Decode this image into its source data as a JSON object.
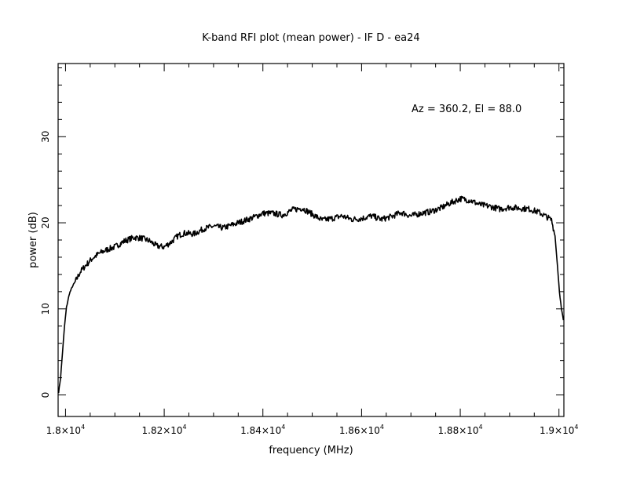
{
  "chart_data": {
    "type": "line",
    "title": "K-band RFI plot (mean power) - IF D - ea24",
    "xlabel": "frequency (MHz)",
    "ylabel": "power (dB)",
    "annotation": "Az = 360.2, El = 88.0",
    "xlim": [
      17985,
      19010
    ],
    "ylim": [
      -2.5,
      38.5
    ],
    "grid": false,
    "line_color": "#000000",
    "x_ticks": [
      {
        "value": 18000,
        "mantissa": "1.8",
        "exp": "4"
      },
      {
        "value": 18200,
        "mantissa": "1.82",
        "exp": "4"
      },
      {
        "value": 18400,
        "mantissa": "1.84",
        "exp": "4"
      },
      {
        "value": 18600,
        "mantissa": "1.86",
        "exp": "4"
      },
      {
        "value": 18800,
        "mantissa": "1.88",
        "exp": "4"
      },
      {
        "value": 19000,
        "mantissa": "1.9",
        "exp": "4"
      }
    ],
    "y_ticks": [
      {
        "value": 0,
        "label": "0"
      },
      {
        "value": 10,
        "label": "10"
      },
      {
        "value": 20,
        "label": "20"
      },
      {
        "value": 30,
        "label": "30"
      }
    ],
    "series": [
      {
        "x": [
          17986,
          17990,
          17994,
          17998,
          18002,
          18008,
          18014,
          18022,
          18030,
          18040,
          18055,
          18070,
          18085,
          18100,
          18120,
          18140,
          18155,
          18170,
          18185,
          18200,
          18215,
          18228,
          18240,
          18260,
          18280,
          18300,
          18320,
          18340,
          18360,
          18380,
          18400,
          18420,
          18440,
          18460,
          18480,
          18500,
          18520,
          18540,
          18560,
          18580,
          18600,
          18620,
          18640,
          18660,
          18680,
          18700,
          18720,
          18740,
          18760,
          18780,
          18800,
          18820,
          18840,
          18860,
          18880,
          18900,
          18920,
          18940,
          18960,
          18975,
          18985,
          18992,
          18997,
          19001,
          19005,
          19009
        ],
        "y": [
          0.3,
          2.0,
          5.0,
          8.0,
          10.2,
          11.8,
          12.6,
          13.4,
          14.3,
          15.0,
          15.9,
          16.5,
          16.9,
          17.2,
          17.9,
          18.3,
          18.2,
          17.9,
          17.3,
          17.2,
          17.8,
          18.5,
          18.8,
          18.7,
          19.3,
          19.6,
          19.4,
          19.8,
          20.2,
          20.6,
          21.1,
          21.1,
          20.9,
          21.5,
          21.7,
          21.0,
          20.3,
          20.5,
          20.8,
          20.4,
          20.5,
          20.8,
          20.4,
          20.7,
          21.2,
          20.8,
          21.1,
          21.3,
          21.7,
          22.3,
          22.8,
          22.6,
          22.1,
          21.9,
          21.6,
          21.8,
          21.7,
          21.6,
          21.2,
          20.7,
          20.3,
          18.5,
          15.0,
          12.0,
          10.0,
          8.7
        ]
      }
    ]
  }
}
